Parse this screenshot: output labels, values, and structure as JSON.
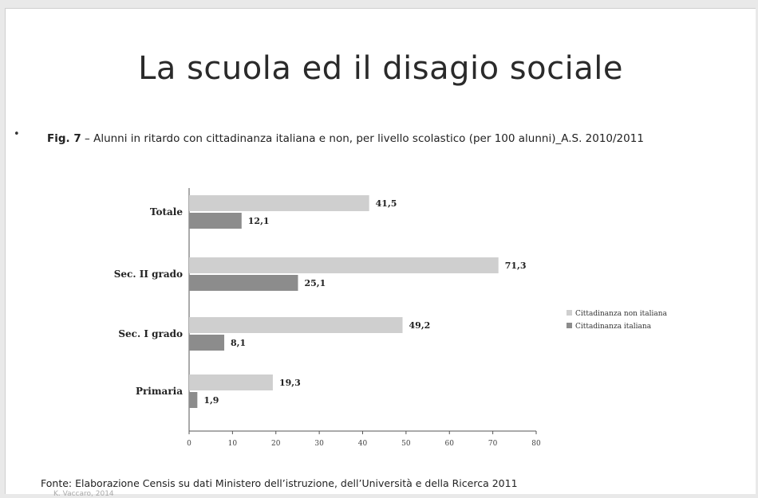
{
  "slide": {
    "title": "La scuola ed il disagio sociale",
    "bullet": "•",
    "caption_fig": "Fig. 7",
    "caption_text": " – Alunni in ritardo con cittadinanza italiana e non, per livello scolastico (per 100 alunni)_A.S. 2010/2011",
    "source": "Fonte: Elaborazione Censis su dati Ministero dell’istruzione, dell’Università e della Ricerca 2011",
    "footer_note": "K. Vaccaro, 2014"
  },
  "chart_data": {
    "type": "bar",
    "orientation": "horizontal",
    "categories": [
      "Totale",
      "Sec. II grado",
      "Sec. I grado",
      "Primaria"
    ],
    "series": [
      {
        "name": "Cittadinanza non italiana",
        "values": [
          41.5,
          71.3,
          49.2,
          19.3
        ],
        "labels": [
          "41,5",
          "71,3",
          "49,2",
          "19,3"
        ],
        "color": "#cfcfcf"
      },
      {
        "name": "Cittadinanza italiana",
        "values": [
          12.1,
          25.1,
          8.1,
          1.9
        ],
        "labels": [
          "12,1",
          "25,1",
          "8,1",
          "1,9"
        ],
        "color": "#8c8c8c"
      }
    ],
    "xlim": [
      0,
      80
    ],
    "xticks": [
      0,
      10,
      20,
      30,
      40,
      50,
      60,
      70,
      80
    ],
    "grid": false,
    "legend_position": "right"
  }
}
